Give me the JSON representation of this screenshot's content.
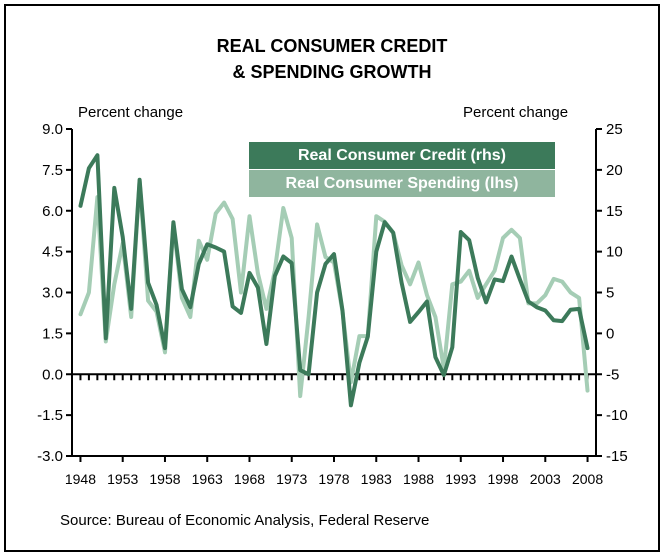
{
  "title_line1": "REAL CONSUMER CREDIT",
  "title_line2": "& SPENDING GROWTH",
  "left_unit": "Percent change",
  "right_unit": "Percent change",
  "source": "Source: Bureau of Economic Analysis, Federal Reserve",
  "colors": {
    "credit": "#3c7a5a",
    "spending": "#a5cdb5",
    "axis": "#000000"
  },
  "chart_data": {
    "type": "line",
    "title": "REAL CONSUMER CREDIT & SPENDING GROWTH",
    "x_ticks": [
      "1948",
      "1953",
      "1958",
      "1963",
      "1968",
      "1973",
      "1978",
      "1983",
      "1988",
      "1993",
      "1998",
      "2003",
      "2008"
    ],
    "xlim": [
      1947,
      2009
    ],
    "y_left": {
      "label": "Percent change",
      "lim": [
        -3.0,
        9.0
      ],
      "ticks": [
        "9.0",
        "7.5",
        "6.0",
        "4.5",
        "3.0",
        "1.5",
        "0.0",
        "-1.5",
        "-3.0"
      ]
    },
    "y_right": {
      "label": "Percent change",
      "lim": [
        -15,
        25
      ],
      "ticks": [
        "25",
        "20",
        "15",
        "10",
        "5",
        "0",
        "-5",
        "-10",
        "-15"
      ]
    },
    "legend_position": "top-right",
    "grid": false,
    "series": [
      {
        "name": "Real Consumer Credit (rhs)",
        "axis": "right",
        "x": [
          1948,
          1949,
          1950,
          1951,
          1952,
          1953,
          1954,
          1955,
          1956,
          1957,
          1958,
          1959,
          1960,
          1961,
          1962,
          1963,
          1964,
          1965,
          1966,
          1967,
          1968,
          1969,
          1970,
          1971,
          1972,
          1973,
          1974,
          1975,
          1976,
          1977,
          1978,
          1979,
          1980,
          1981,
          1982,
          1983,
          1984,
          1985,
          1986,
          1987,
          1988,
          1989,
          1990,
          1991,
          1992,
          1993,
          1994,
          1995,
          1996,
          1997,
          1998,
          1999,
          2000,
          2001,
          2002,
          2003,
          2004,
          2005,
          2006,
          2007,
          2008
        ],
        "y": [
          15.6,
          20.2,
          21.8,
          -0.6,
          17.8,
          11.8,
          3.0,
          18.8,
          6.2,
          3.5,
          -1.8,
          13.6,
          5.4,
          3.2,
          8.5,
          10.9,
          10.5,
          10.0,
          3.3,
          2.5,
          7.4,
          5.6,
          -1.3,
          7.0,
          9.4,
          8.6,
          -4.5,
          -5.0,
          5.0,
          8.5,
          9.7,
          2.8,
          -8.8,
          -3.6,
          -0.4,
          10.0,
          13.6,
          12.3,
          6.2,
          1.4,
          2.6,
          3.9,
          -2.9,
          -5.1,
          -1.7,
          12.4,
          11.4,
          6.8,
          3.8,
          6.6,
          6.4,
          9.4,
          6.6,
          3.9,
          3.2,
          2.8,
          1.6,
          1.5,
          2.9,
          3.0,
          -1.8
        ]
      },
      {
        "name": "Real Consumer Spending (lhs)",
        "axis": "left",
        "x": [
          1948,
          1949,
          1950,
          1951,
          1952,
          1953,
          1954,
          1955,
          1956,
          1957,
          1958,
          1959,
          1960,
          1961,
          1962,
          1963,
          1964,
          1965,
          1966,
          1967,
          1968,
          1969,
          1970,
          1971,
          1972,
          1973,
          1974,
          1975,
          1976,
          1977,
          1978,
          1979,
          1980,
          1981,
          1982,
          1983,
          1984,
          1985,
          1986,
          1987,
          1988,
          1989,
          1990,
          1991,
          1992,
          1993,
          1994,
          1995,
          1996,
          1997,
          1998,
          1999,
          2000,
          2001,
          2002,
          2003,
          2004,
          2005,
          2006,
          2007,
          2008
        ],
        "y": [
          2.2,
          3.0,
          6.5,
          1.2,
          3.3,
          4.8,
          2.1,
          7.1,
          2.7,
          2.3,
          0.8,
          5.5,
          2.8,
          2.1,
          4.9,
          4.2,
          5.9,
          6.3,
          5.7,
          3.0,
          5.8,
          3.7,
          2.4,
          3.8,
          6.1,
          5.0,
          -0.8,
          2.1,
          5.5,
          4.3,
          4.1,
          2.3,
          -0.3,
          1.4,
          1.4,
          5.8,
          5.6,
          5.2,
          4.0,
          3.3,
          4.1,
          2.9,
          2.1,
          0.2,
          3.3,
          3.4,
          3.8,
          2.8,
          3.3,
          3.8,
          5.0,
          5.3,
          5.0,
          2.6,
          2.6,
          2.9,
          3.5,
          3.4,
          3.0,
          2.8,
          -0.6
        ]
      }
    ]
  }
}
